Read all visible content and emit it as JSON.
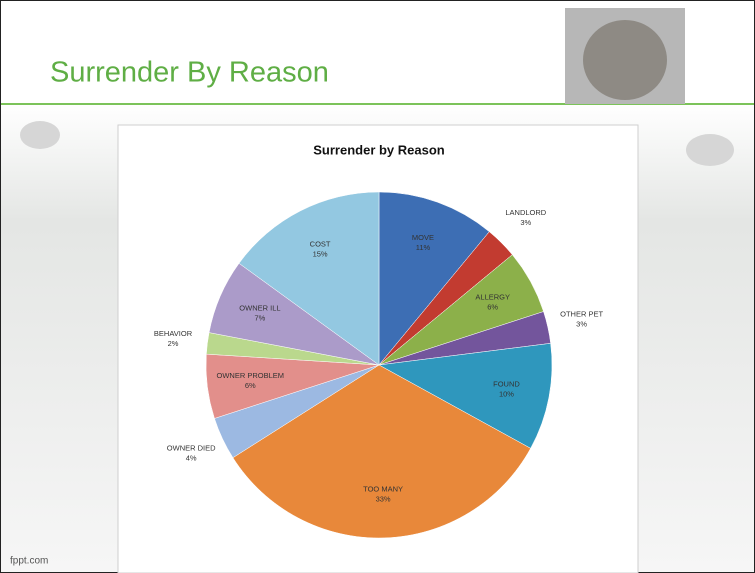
{
  "slide_title": "Surrender By Reason",
  "footer": "fppt.com",
  "chart_data": {
    "type": "pie",
    "title": "Surrender  by Reason",
    "categories": [
      "MOVE",
      "LANDLORD",
      "ALLERGY",
      "OTHER PET",
      "FOUND",
      "TOO MANY",
      "OWNER DIED",
      "OWNER PROBLEM",
      "BEHAVIOR",
      "OWNER ILL",
      "COST"
    ],
    "values": [
      11,
      3,
      6,
      3,
      10,
      33,
      4,
      6,
      2,
      7,
      15
    ],
    "value_labels": [
      "11%",
      "3%",
      "6%",
      "3%",
      "10%",
      "33%",
      "4%",
      "6%",
      "2%",
      "7%",
      "15%"
    ],
    "colors": [
      "#3d6eb4",
      "#c23b30",
      "#8cb04a",
      "#73559c",
      "#2f97bd",
      "#e8883a",
      "#9cb9e2",
      "#e28f8b",
      "#bad88d",
      "#ab9bc9",
      "#93c8e1"
    ]
  }
}
